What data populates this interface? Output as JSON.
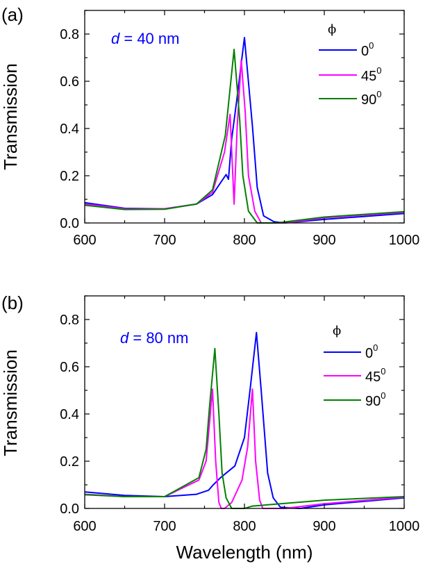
{
  "chart_data": [
    {
      "type": "line",
      "panel_label": "(a)",
      "annotation": {
        "italic": "d",
        "rest": " = 40 nm",
        "color": "#0000ff"
      },
      "xlabel": "",
      "ylabel": "Transmission",
      "xlim": [
        600,
        1000
      ],
      "ylim": [
        0,
        0.9
      ],
      "xticks": [
        "600",
        "700",
        "800",
        "900",
        "1000"
      ],
      "yticks": [
        "0.0",
        "0.2",
        "0.4",
        "0.6",
        "0.8"
      ],
      "legend": {
        "title": "ϕ",
        "position": "top-right"
      },
      "series": [
        {
          "name": "0",
          "sup": "0",
          "color": "#0000ff",
          "x": [
            600,
            650,
            700,
            740,
            760,
            777,
            780,
            784,
            790,
            800,
            810,
            816,
            824,
            837,
            850,
            900,
            1000
          ],
          "y": [
            0.086,
            0.062,
            0.06,
            0.08,
            0.12,
            0.205,
            0.185,
            0.355,
            0.51,
            0.785,
            0.41,
            0.15,
            0.03,
            0.005,
            0.0,
            0.015,
            0.04
          ]
        },
        {
          "name": "45",
          "sup": "0",
          "color": "#ff00ff",
          "x": [
            600,
            650,
            700,
            740,
            760,
            775,
            782,
            787,
            791,
            796,
            801,
            805,
            813,
            821,
            850,
            900,
            1000
          ],
          "y": [
            0.08,
            0.06,
            0.06,
            0.08,
            0.13,
            0.3,
            0.46,
            0.08,
            0.41,
            0.69,
            0.47,
            0.2,
            0.05,
            0.0,
            0.0,
            0.022,
            0.045
          ]
        },
        {
          "name": "90",
          "sup": "0",
          "color": "#008000",
          "x": [
            600,
            650,
            700,
            740,
            760,
            776,
            787,
            794,
            798,
            805,
            816,
            840,
            900,
            1000
          ],
          "y": [
            0.075,
            0.057,
            0.058,
            0.08,
            0.14,
            0.37,
            0.735,
            0.44,
            0.2,
            0.05,
            0.0,
            0.0,
            0.025,
            0.048
          ]
        }
      ]
    },
    {
      "type": "line",
      "panel_label": "(b)",
      "annotation": {
        "italic": "d",
        "rest": " = 80 nm",
        "color": "#0000ff"
      },
      "xlabel": "Wavelength (nm)",
      "ylabel": "Transmission",
      "xlim": [
        600,
        1000
      ],
      "ylim": [
        0,
        0.9
      ],
      "xticks": [
        "600",
        "700",
        "800",
        "900",
        "1000"
      ],
      "yticks": [
        "0.0",
        "0.2",
        "0.4",
        "0.6",
        "0.8"
      ],
      "legend": {
        "title": "ϕ",
        "position": "top-right"
      },
      "series": [
        {
          "name": "0",
          "sup": "0",
          "color": "#0000ff",
          "x": [
            600,
            650,
            700,
            740,
            755,
            761,
            770,
            788,
            800,
            807,
            815,
            821,
            829,
            836,
            845,
            870,
            900,
            1000
          ],
          "y": [
            0.07,
            0.055,
            0.05,
            0.06,
            0.077,
            0.1,
            0.13,
            0.18,
            0.3,
            0.5,
            0.745,
            0.5,
            0.15,
            0.045,
            0.005,
            0.0,
            0.015,
            0.045
          ]
        },
        {
          "name": "45",
          "sup": "0",
          "color": "#ff00ff",
          "x": [
            600,
            650,
            700,
            743,
            752,
            760,
            764,
            768,
            771,
            775,
            784,
            797,
            804,
            810,
            814,
            819,
            823,
            850,
            900,
            1000
          ],
          "y": [
            0.06,
            0.05,
            0.05,
            0.12,
            0.2,
            0.505,
            0.2,
            0.025,
            0.0,
            0.0,
            0.025,
            0.12,
            0.26,
            0.505,
            0.2,
            0.035,
            0.0,
            0.0,
            0.02,
            0.048
          ]
        },
        {
          "name": "90",
          "sup": "0",
          "color": "#008000",
          "x": [
            600,
            650,
            700,
            743,
            752,
            756,
            763,
            768,
            772,
            777,
            784,
            800,
            810,
            900,
            1000
          ],
          "y": [
            0.058,
            0.05,
            0.05,
            0.13,
            0.25,
            0.42,
            0.677,
            0.4,
            0.15,
            0.045,
            0.0,
            0.0,
            0.01,
            0.035,
            0.05
          ]
        }
      ]
    }
  ]
}
